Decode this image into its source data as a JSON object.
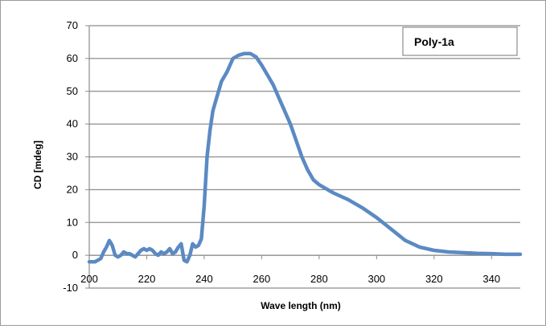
{
  "chart_data": {
    "type": "line",
    "xlabel": "Wave length (nm)",
    "ylabel": "CD [mdeg]",
    "xlim": [
      200,
      350
    ],
    "ylim": [
      -10,
      70
    ],
    "xticks": [
      200,
      220,
      240,
      260,
      280,
      300,
      320,
      340
    ],
    "yticks": [
      -10,
      0,
      10,
      20,
      30,
      40,
      50,
      60,
      70
    ],
    "grid": "horizontal",
    "legend_position": "top-right",
    "series": [
      {
        "name": "Poly-1a",
        "color": "#5b8ac3",
        "x": [
          200,
          202,
          204,
          205,
          206,
          207,
          208,
          209,
          210,
          211,
          212,
          213,
          214,
          215,
          216,
          217,
          218,
          219,
          220,
          221,
          222,
          223,
          224,
          225,
          226,
          227,
          228,
          229,
          230,
          231,
          232,
          233,
          234,
          235,
          236,
          237,
          238,
          239,
          240,
          241,
          242,
          243,
          244,
          245,
          246,
          248,
          250,
          252,
          254,
          256,
          258,
          260,
          262,
          264,
          266,
          268,
          270,
          272,
          274,
          276,
          278,
          280,
          285,
          290,
          295,
          300,
          305,
          310,
          315,
          320,
          325,
          330,
          335,
          340,
          345,
          350
        ],
        "y": [
          -2,
          -2,
          -1,
          1,
          2.5,
          4.5,
          3,
          0,
          -0.5,
          0,
          1,
          0.5,
          0.5,
          0,
          -0.5,
          0.5,
          1.5,
          2,
          1.5,
          2,
          1.5,
          0.5,
          0,
          1,
          0.5,
          1,
          2,
          0.5,
          1,
          2.5,
          3.5,
          -1.5,
          -2,
          0,
          3.5,
          2.5,
          3,
          5,
          15,
          30,
          38,
          44,
          47,
          50,
          53,
          56,
          60,
          61,
          61.5,
          61.5,
          60.5,
          58,
          55,
          52,
          48,
          44,
          40,
          35,
          30,
          26,
          23,
          21.5,
          19,
          17,
          14.5,
          11.5,
          8,
          4.5,
          2.5,
          1.5,
          1,
          0.8,
          0.6,
          0.5,
          0.3,
          0.3
        ]
      }
    ]
  }
}
